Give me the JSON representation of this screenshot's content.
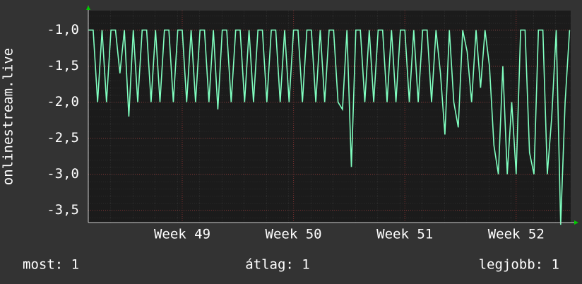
{
  "chart_data": {
    "type": "line",
    "y_label": "onlinestream.live",
    "x": [
      48.16,
      48.2,
      48.24,
      48.28,
      48.32,
      48.36,
      48.4,
      48.44,
      48.48,
      48.52,
      48.56,
      48.6,
      48.64,
      48.68,
      48.72,
      48.76,
      48.8,
      48.84,
      48.88,
      48.92,
      48.96,
      49.0,
      49.04,
      49.08,
      49.12,
      49.16,
      49.2,
      49.24,
      49.28,
      49.32,
      49.36,
      49.4,
      49.44,
      49.48,
      49.52,
      49.56,
      49.6,
      49.64,
      49.68,
      49.72,
      49.76,
      49.8,
      49.84,
      49.88,
      49.92,
      49.96,
      50.0,
      50.04,
      50.08,
      50.12,
      50.16,
      50.2,
      50.24,
      50.28,
      50.32,
      50.36,
      50.4,
      50.44,
      50.48,
      50.52,
      50.56,
      50.6,
      50.64,
      50.68,
      50.72,
      50.76,
      50.8,
      50.84,
      50.88,
      50.92,
      50.96,
      51.0,
      51.04,
      51.08,
      51.12,
      51.16,
      51.2,
      51.24,
      51.28,
      51.32,
      51.36,
      51.4,
      51.44,
      51.48,
      51.52,
      51.56,
      51.6,
      51.64,
      51.68,
      51.72,
      51.76,
      51.8,
      51.84,
      51.88,
      51.92,
      51.96,
      52.0,
      52.04,
      52.08,
      52.12,
      52.16,
      52.2,
      52.24,
      52.28,
      52.32,
      52.36,
      52.4,
      52.44,
      52.48
    ],
    "series": [
      {
        "name": "onlinestream.live",
        "color": "#80ffc0",
        "values": [
          -1,
          -1,
          -2,
          -1,
          -2,
          -1,
          -1,
          -1.6,
          -1,
          -2.2,
          -1,
          -2,
          -1,
          -1,
          -2,
          -1,
          -2,
          -1,
          -1,
          -2,
          -1,
          -1,
          -2,
          -1,
          -2,
          -1,
          -1,
          -2,
          -1,
          -2.1,
          -1,
          -1,
          -2,
          -1,
          -1,
          -2,
          -1,
          -2,
          -1,
          -1,
          -2,
          -1,
          -1,
          -2,
          -1,
          -2,
          -1,
          -1,
          -2,
          -1,
          -1,
          -2,
          -1,
          -2,
          -1,
          -1,
          -2,
          -2.1,
          -1,
          -2.9,
          -1,
          -1,
          -2,
          -1,
          -2,
          -1,
          -1,
          -2,
          -1,
          -2,
          -1,
          -1,
          -2,
          -1,
          -2,
          -1,
          -1,
          -2,
          -1,
          -1.6,
          -2.45,
          -1,
          -2,
          -2.35,
          -1,
          -1.3,
          -2,
          -1,
          -1.8,
          -1,
          -1.5,
          -2.6,
          -3,
          -1.5,
          -3,
          -2,
          -3,
          -1,
          -1,
          -2.7,
          -3,
          -1,
          -1,
          -3,
          -2.2,
          -1,
          -3.7,
          -2,
          -1
        ]
      }
    ],
    "xlim": [
      48.156,
      52.49
    ],
    "xticks": [
      {
        "value": 49,
        "label": "Week 49"
      },
      {
        "value": 50,
        "label": "Week 50"
      },
      {
        "value": 51,
        "label": "Week 51"
      },
      {
        "value": 52,
        "label": "Week 52"
      }
    ],
    "ylim": [
      -3.67,
      -0.73
    ],
    "yticks": [
      {
        "value": -1.0,
        "label": "-1,0"
      },
      {
        "value": -1.5,
        "label": "-1,5"
      },
      {
        "value": -2.0,
        "label": "-2,0"
      },
      {
        "value": -2.5,
        "label": "-2,5"
      },
      {
        "value": -3.0,
        "label": "-3,0"
      },
      {
        "value": -3.5,
        "label": "-3,5"
      }
    ],
    "grid": true,
    "footer": [
      "most: 1",
      "átlag: 1",
      "legjobb: 1"
    ]
  }
}
